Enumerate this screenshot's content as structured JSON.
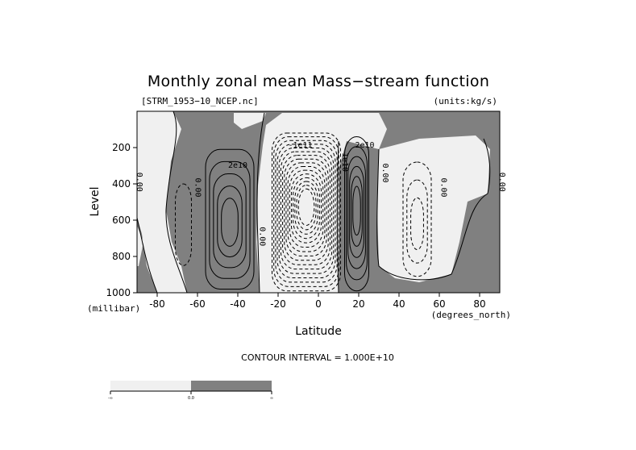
{
  "chart_data": {
    "type": "contour",
    "title": "Monthly zonal mean Mass−stream function",
    "subtitle_left": "[STRM_1953−10_NCEP.nc]",
    "subtitle_right": "(units:kg/s)",
    "xlabel": "Latitude",
    "xunit": "(degrees_north)",
    "ylabel": "Level",
    "yunit": "(millibar)",
    "xlim": [
      -90,
      90
    ],
    "ylim": [
      1000,
      0
    ],
    "x_ticks": [
      -80,
      -60,
      -40,
      -20,
      0,
      20,
      40,
      60,
      80
    ],
    "y_ticks": [
      200,
      400,
      600,
      800,
      1000
    ],
    "contour_interval_text": "CONTOUR INTERVAL = 1.000E+10",
    "contour_interval": 10000000000.0,
    "shading": {
      "positive_color": "#808080",
      "negative_color": "#f0f0f0",
      "levels": [
        0.0
      ]
    },
    "colorbar_labels": [
      "-∞",
      "0.0",
      "∞"
    ],
    "cells": [
      {
        "name": "southern-polar-cell",
        "center_lat": -67,
        "center_p": 630,
        "width_deg": 8,
        "top_p": 400,
        "bottom_p": 850,
        "levels": 1,
        "sign": -1
      },
      {
        "name": "southern-ferrel-cell",
        "center_lat": -44,
        "center_p": 620,
        "width_deg": 24,
        "top_p": 210,
        "bottom_p": 980,
        "levels": 5,
        "sign": 1
      },
      {
        "name": "southern-hadley-cell",
        "center_lat": -6,
        "center_p": 520,
        "width_deg": 34,
        "top_p": 120,
        "bottom_p": 990,
        "levels": 16,
        "sign": -1
      },
      {
        "name": "northern-hadley-cell",
        "center_lat": 19,
        "center_p": 540,
        "width_deg": 12,
        "top_p": 140,
        "bottom_p": 990,
        "levels": 6,
        "sign": 1
      },
      {
        "name": "northern-ferrel-cell",
        "center_lat": 49,
        "center_p": 640,
        "width_deg": 14,
        "top_p": 280,
        "bottom_p": 910,
        "levels": 3,
        "sign": -1
      }
    ],
    "contour_labels": [
      {
        "text": "0.00",
        "lat": -90,
        "p": 390
      },
      {
        "text": "0.00",
        "lat": -61,
        "p": 420
      },
      {
        "text": "2e10",
        "lat": -40,
        "p": 310
      },
      {
        "text": "0.00",
        "lat": -29,
        "p": 690
      },
      {
        "text": "-1e11",
        "lat": -9,
        "p": 200
      },
      {
        "text": "1e10",
        "lat": 12,
        "p": 280
      },
      {
        "text": "2e10",
        "lat": 23,
        "p": 200
      },
      {
        "text": "0.00",
        "lat": 32,
        "p": 340
      },
      {
        "text": "0.00",
        "lat": 61,
        "p": 420
      },
      {
        "text": "0.00",
        "lat": 90,
        "p": 390
      }
    ]
  }
}
